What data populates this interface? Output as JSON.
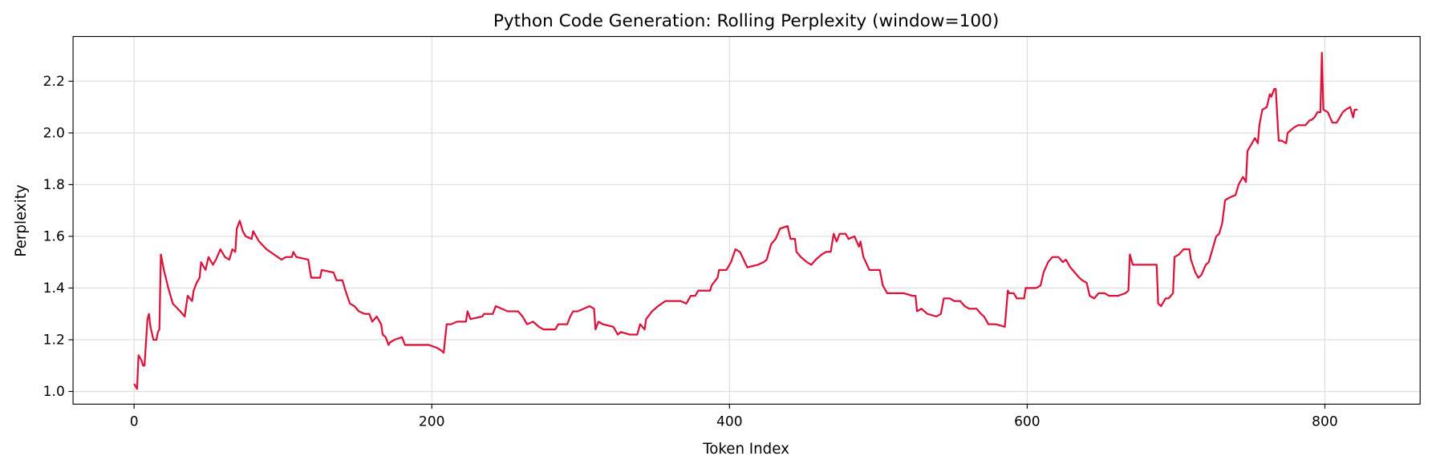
{
  "chart_data": {
    "type": "line",
    "title": "Python Code Generation: Rolling Perplexity (window=100)",
    "x_label": "Token Index",
    "y_label": "Perplexity",
    "xlim": [
      -41,
      864
    ],
    "ylim": [
      0.951,
      2.373
    ],
    "xticks": [
      0,
      200,
      400,
      600,
      800
    ],
    "yticks": [
      {
        "value": 1,
        "label": "1.0"
      },
      1.2,
      1.4,
      1.6,
      1.8,
      {
        "value": 2,
        "label": "2.0"
      },
      2.2
    ],
    "grid": true,
    "x": [
      0,
      2,
      3,
      5,
      6,
      7,
      9,
      10,
      11,
      13,
      15,
      16,
      17,
      18,
      20,
      23,
      26,
      31,
      34,
      36,
      39,
      40,
      42,
      44,
      45,
      48,
      50,
      53,
      55,
      58,
      61,
      64,
      66,
      68,
      69,
      71,
      73,
      75,
      79,
      80,
      84,
      89,
      94,
      99,
      102,
      106,
      107,
      109,
      117,
      119,
      125,
      126,
      134,
      136,
      140,
      142,
      145,
      148,
      151,
      155,
      158,
      160,
      163,
      166,
      167,
      169,
      171,
      172,
      175,
      180,
      182,
      189,
      195,
      198,
      203,
      206,
      208,
      210,
      213,
      217,
      223,
      224,
      226,
      234,
      235,
      241,
      243,
      247,
      251,
      258,
      261,
      264,
      268,
      272,
      275,
      283,
      285,
      291,
      293,
      295,
      298,
      302,
      306,
      309,
      310,
      312,
      315,
      322,
      325,
      327,
      333,
      338,
      340,
      343,
      344,
      348,
      352,
      357,
      367,
      371,
      374,
      377,
      379,
      387,
      388,
      392,
      393,
      398,
      401,
      404,
      407,
      412,
      419,
      423,
      425,
      428,
      431,
      434,
      439,
      441,
      444,
      445,
      448,
      452,
      455,
      458,
      462,
      465,
      468,
      470,
      472,
      474,
      478,
      480,
      484,
      487,
      488,
      490,
      494,
      501,
      503,
      506,
      517,
      523,
      525,
      526,
      529,
      533,
      539,
      542,
      544,
      548,
      551,
      555,
      558,
      561,
      566,
      569,
      571,
      574,
      579,
      585,
      587,
      588,
      591,
      593,
      598,
      599,
      603,
      606,
      609,
      611,
      614,
      617,
      621,
      624,
      626,
      629,
      632,
      635,
      637,
      640,
      642,
      645,
      648,
      652,
      655,
      661,
      666,
      668,
      669,
      671,
      674,
      680,
      684,
      687,
      688,
      690,
      693,
      695,
      698,
      699,
      702,
      705,
      709,
      710,
      713,
      715,
      717,
      720,
      722,
      725,
      727,
      729,
      731,
      733,
      736,
      740,
      742,
      745,
      747,
      748,
      751,
      753,
      755,
      756,
      758,
      761,
      763,
      764,
      766,
      767,
      769,
      771,
      774,
      775,
      779,
      782,
      787,
      790,
      791,
      793,
      795,
      797,
      798,
      799,
      802,
      805,
      808,
      812,
      814,
      817,
      819,
      820,
      822
    ],
    "series": [
      {
        "color": "#dc143c",
        "values": [
          1.03,
          1.01,
          1.14,
          1.12,
          1.1,
          1.1,
          1.28,
          1.3,
          1.25,
          1.2,
          1.2,
          1.23,
          1.24,
          1.53,
          1.47,
          1.4,
          1.34,
          1.31,
          1.29,
          1.37,
          1.35,
          1.39,
          1.42,
          1.44,
          1.5,
          1.47,
          1.52,
          1.49,
          1.51,
          1.55,
          1.52,
          1.51,
          1.55,
          1.54,
          1.63,
          1.66,
          1.62,
          1.6,
          1.59,
          1.62,
          1.58,
          1.55,
          1.53,
          1.51,
          1.52,
          1.52,
          1.54,
          1.52,
          1.51,
          1.44,
          1.44,
          1.47,
          1.46,
          1.43,
          1.43,
          1.39,
          1.34,
          1.33,
          1.31,
          1.3,
          1.3,
          1.27,
          1.29,
          1.26,
          1.22,
          1.21,
          1.18,
          1.19,
          1.2,
          1.21,
          1.18,
          1.18,
          1.18,
          1.18,
          1.17,
          1.16,
          1.15,
          1.26,
          1.26,
          1.27,
          1.27,
          1.31,
          1.28,
          1.29,
          1.3,
          1.3,
          1.33,
          1.32,
          1.31,
          1.31,
          1.29,
          1.26,
          1.27,
          1.25,
          1.24,
          1.24,
          1.26,
          1.26,
          1.29,
          1.31,
          1.31,
          1.32,
          1.33,
          1.32,
          1.24,
          1.27,
          1.26,
          1.25,
          1.22,
          1.23,
          1.22,
          1.22,
          1.26,
          1.24,
          1.28,
          1.31,
          1.33,
          1.35,
          1.35,
          1.34,
          1.37,
          1.37,
          1.39,
          1.39,
          1.41,
          1.44,
          1.47,
          1.47,
          1.5,
          1.55,
          1.54,
          1.48,
          1.49,
          1.5,
          1.51,
          1.57,
          1.59,
          1.63,
          1.64,
          1.59,
          1.59,
          1.54,
          1.52,
          1.5,
          1.49,
          1.51,
          1.53,
          1.54,
          1.54,
          1.61,
          1.58,
          1.61,
          1.61,
          1.59,
          1.6,
          1.56,
          1.58,
          1.52,
          1.47,
          1.47,
          1.41,
          1.38,
          1.38,
          1.37,
          1.37,
          1.31,
          1.32,
          1.3,
          1.29,
          1.3,
          1.36,
          1.36,
          1.35,
          1.35,
          1.33,
          1.32,
          1.32,
          1.3,
          1.29,
          1.26,
          1.26,
          1.25,
          1.39,
          1.38,
          1.38,
          1.36,
          1.36,
          1.4,
          1.4,
          1.4,
          1.41,
          1.46,
          1.5,
          1.52,
          1.52,
          1.5,
          1.51,
          1.48,
          1.46,
          1.44,
          1.43,
          1.42,
          1.37,
          1.36,
          1.38,
          1.38,
          1.37,
          1.37,
          1.38,
          1.39,
          1.53,
          1.49,
          1.49,
          1.49,
          1.49,
          1.49,
          1.34,
          1.33,
          1.36,
          1.36,
          1.38,
          1.52,
          1.53,
          1.55,
          1.55,
          1.51,
          1.46,
          1.44,
          1.45,
          1.49,
          1.5,
          1.56,
          1.6,
          1.61,
          1.65,
          1.74,
          1.75,
          1.76,
          1.8,
          1.83,
          1.81,
          1.93,
          1.96,
          1.98,
          1.96,
          2.03,
          2.09,
          2.1,
          2.15,
          2.14,
          2.17,
          2.17,
          1.97,
          1.97,
          1.96,
          2.0,
          2.02,
          2.03,
          2.03,
          2.05,
          2.05,
          2.06,
          2.08,
          2.08,
          2.31,
          2.09,
          2.08,
          2.04,
          2.04,
          2.08,
          2.09,
          2.1,
          2.06,
          2.09,
          2.09
        ]
      }
    ]
  }
}
